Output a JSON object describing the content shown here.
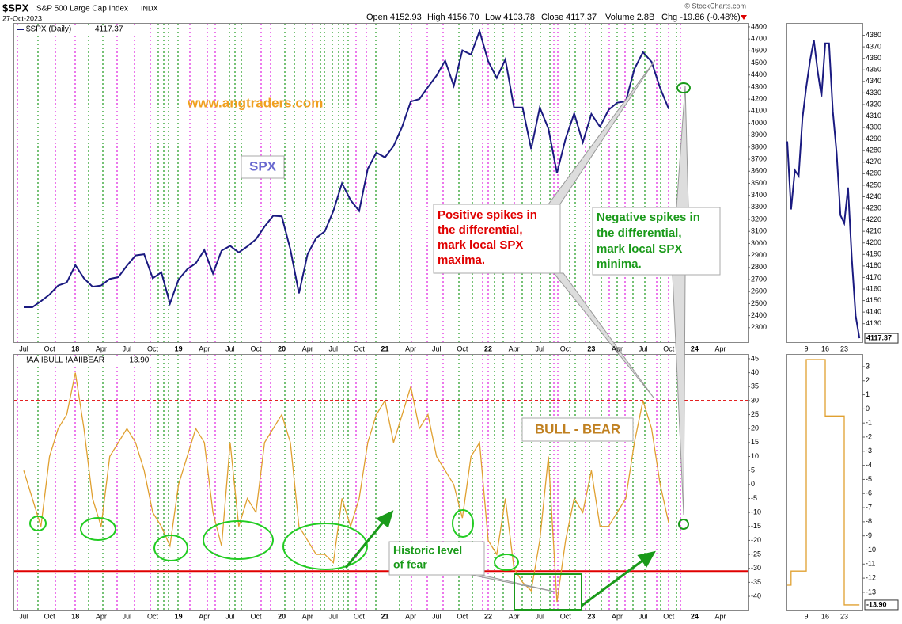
{
  "header": {
    "symbol": "$SPX",
    "name": "S&P 500 Large Cap Index",
    "exchange": "INDX",
    "date": "27-Oct-2023",
    "open": "Open 4152.93",
    "high": "High 4156.70",
    "low": "Low 4103.78",
    "close": "Close 4117.37",
    "volume": "Volume 2.8B",
    "change": "Chg -19.86 (-0.48%)",
    "copyright": "© StockCharts.com"
  },
  "chart_data": [
    {
      "type": "line",
      "categories": [
        "Jul",
        null,
        null,
        "Oct",
        null,
        null,
        "18",
        null,
        null,
        "Apr",
        null,
        null,
        "Jul",
        null,
        null,
        "Oct",
        null,
        null,
        "19",
        null,
        null,
        "Apr",
        null,
        null,
        "Jul",
        null,
        null,
        "Oct",
        null,
        null,
        "20",
        null,
        null,
        "Apr",
        null,
        null,
        "Jul",
        null,
        null,
        "Oct",
        null,
        null,
        "21",
        null,
        null,
        "Apr",
        null,
        null,
        "Jul",
        null,
        null,
        "Oct",
        null,
        null,
        "22",
        null,
        null,
        "Apr",
        null,
        null,
        "Jul",
        null,
        null,
        "Oct",
        null,
        null,
        "23",
        null,
        null,
        "Apr",
        null,
        null,
        "Jul",
        null,
        null,
        "Oct",
        null,
        null,
        "24",
        null,
        null,
        "Apr"
      ],
      "series": [
        {
          "name": "$SPX (Daily)",
          "color": "#1a1a80",
          "values": [
            2470,
            2470,
            2520,
            2575,
            2650,
            2675,
            2820,
            2710,
            2640,
            2650,
            2705,
            2720,
            2815,
            2900,
            2910,
            2710,
            2760,
            2500,
            2700,
            2785,
            2835,
            2945,
            2750,
            2940,
            2980,
            2925,
            2975,
            3035,
            3140,
            3230,
            3225,
            2950,
            2585,
            2910,
            3045,
            3100,
            3270,
            3500,
            3360,
            3270,
            3620,
            3755,
            3715,
            3810,
            3970,
            4180,
            4200,
            4300,
            4395,
            4520,
            4310,
            4605,
            4570,
            4765,
            4515,
            4375,
            4530,
            4130,
            4130,
            3785,
            4130,
            3955,
            3585,
            3870,
            4080,
            3840,
            4075,
            3970,
            4110,
            4170,
            4180,
            4450,
            4590,
            4510,
            4290,
            4117.37,
            null,
            null,
            null,
            null,
            null,
            null
          ]
        }
      ],
      "legend_value": "4117.37",
      "ylim": [
        2180,
        4826
      ],
      "yticks": [
        2300,
        2400,
        2500,
        2600,
        2700,
        2800,
        2900,
        3000,
        3100,
        3200,
        3300,
        3400,
        3500,
        3600,
        3700,
        3800,
        3900,
        4000,
        4100,
        4200,
        4300,
        4400,
        4500,
        4600,
        4700,
        4800
      ]
    },
    {
      "type": "line",
      "categories": [
        "Jul",
        null,
        null,
        "Oct",
        null,
        null,
        "18",
        null,
        null,
        "Apr",
        null,
        null,
        "Jul",
        null,
        null,
        "Oct",
        null,
        null,
        "19",
        null,
        null,
        "Apr",
        null,
        null,
        "Jul",
        null,
        null,
        "Oct",
        null,
        null,
        "20",
        null,
        null,
        "Apr",
        null,
        null,
        "Jul",
        null,
        null,
        "Oct",
        null,
        null,
        "21",
        null,
        null,
        "Apr",
        null,
        null,
        "Jul",
        null,
        null,
        "Oct",
        null,
        null,
        "22",
        null,
        null,
        "Apr",
        null,
        null,
        "Jul",
        null,
        null,
        "Oct",
        null,
        null,
        "23",
        null,
        null,
        "Apr",
        null,
        null,
        "Jul",
        null,
        null,
        "Oct",
        null,
        null,
        "24",
        null,
        null,
        "Apr"
      ],
      "series": [
        {
          "name": "!AAIIBULL-!AAIIBEAR",
          "color": "#e0a030",
          "values": [
            5,
            -5,
            -15,
            10,
            20,
            25,
            40,
            20,
            -5,
            -15,
            10,
            15,
            20,
            15,
            5,
            -10,
            -15,
            -22,
            0,
            10,
            20,
            15,
            -10,
            -22,
            15,
            -15,
            -5,
            -10,
            15,
            20,
            25,
            15,
            -15,
            -20,
            -25,
            -25,
            -28,
            -5,
            -15,
            -5,
            15,
            25,
            30,
            15,
            25,
            35,
            20,
            25,
            10,
            5,
            0,
            -12,
            10,
            15,
            -20,
            -25,
            -5,
            -30,
            -35,
            -38,
            -20,
            10,
            -42,
            -20,
            -5,
            -10,
            5,
            -15,
            -15,
            -10,
            -5,
            15,
            30,
            20,
            0,
            -13.9,
            null,
            null,
            null,
            null,
            null,
            null
          ]
        }
      ],
      "legend_value": "-13.90",
      "reference_lines": [
        {
          "value": 30,
          "color": "#e00000",
          "style": "dashed"
        },
        {
          "value": -31,
          "color": "#e00000",
          "style": "solid"
        }
      ],
      "ylim": [
        -44.8,
        46.4
      ],
      "yticks": [
        -40,
        -35,
        -30,
        -25,
        -20,
        -15,
        -10,
        -5,
        0,
        5,
        10,
        15,
        20,
        25,
        30,
        35,
        40,
        45
      ]
    },
    {
      "type": "line",
      "categories": [
        null,
        null,
        null,
        null,
        null,
        "9",
        null,
        null,
        null,
        null,
        "16",
        null,
        null,
        null,
        null,
        "23",
        null,
        null,
        null,
        null
      ],
      "series": [
        {
          "color": "#1a1a80",
          "values": [
            4288,
            4229,
            4263,
            4258,
            4308,
            4335,
            4358,
            4376,
            4349,
            4327,
            4373,
            4373,
            4314,
            4278,
            4224,
            4217,
            4248,
            4186,
            4137,
            4117.37
          ]
        }
      ],
      "last_label": "4117.37",
      "ylim": [
        4114,
        4390
      ],
      "yticks": [
        4130,
        4140,
        4150,
        4160,
        4170,
        4180,
        4190,
        4200,
        4210,
        4220,
        4230,
        4240,
        4250,
        4260,
        4270,
        4280,
        4290,
        4300,
        4310,
        4320,
        4330,
        4340,
        4350,
        4360,
        4370,
        4380
      ]
    },
    {
      "type": "line",
      "step": true,
      "categories": [
        null,
        null,
        null,
        null,
        null,
        "9",
        null,
        null,
        null,
        null,
        "16",
        null,
        null,
        null,
        null,
        "23",
        null,
        null,
        null,
        null
      ],
      "series": [
        {
          "color": "#e0a030",
          "values": [
            -12.5,
            -11.5,
            -11.5,
            -11.5,
            -11.5,
            3.5,
            3.5,
            3.5,
            3.5,
            3.5,
            -0.5,
            -0.5,
            -0.5,
            -0.5,
            -0.5,
            -13.9,
            -13.9,
            -13.9,
            -13.9,
            -13.9
          ]
        }
      ],
      "last_label": "-13.90",
      "ylim": [
        -14.24,
        3.84
      ],
      "yticks": [
        -13,
        -12,
        -11,
        -10,
        -9,
        -8,
        -7,
        -6,
        -5,
        -4,
        -3,
        -2,
        -1,
        0,
        1,
        2,
        3
      ]
    }
  ],
  "annotations": {
    "website": "www.angtraders.com",
    "spx_label": "SPX",
    "positive": [
      "Positive spikes in",
      "the differential,",
      "mark local SPX",
      "maxima."
    ],
    "negative": [
      "Negative spikes in",
      "the differential,",
      "mark local SPX",
      "minima."
    ],
    "bull_bear": "BULL - BEAR",
    "fear": [
      "Historic level",
      "of fear"
    ]
  }
}
